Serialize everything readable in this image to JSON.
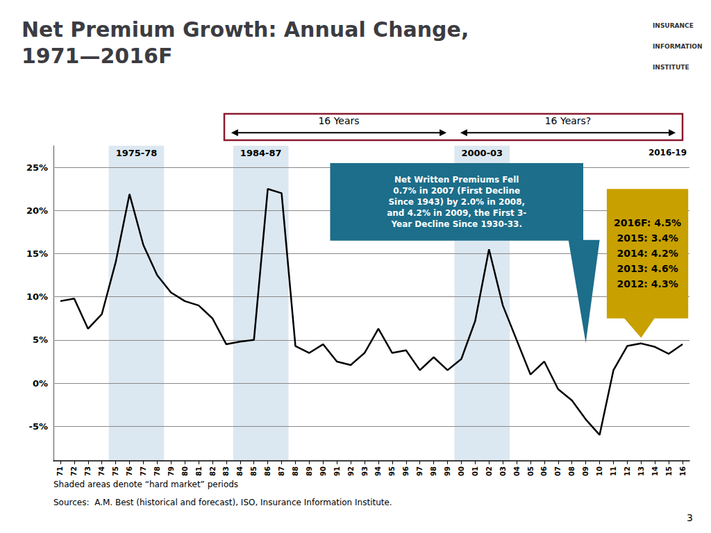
{
  "chart_data": {
    "type": "line",
    "title": "Net Premium Growth: Annual Change,\n1971—2016F",
    "categories": [
      "71",
      "72",
      "73",
      "74",
      "75",
      "76",
      "77",
      "78",
      "79",
      "80",
      "81",
      "82",
      "83",
      "84",
      "85",
      "86",
      "87",
      "88",
      "89",
      "90",
      "91",
      "92",
      "93",
      "94",
      "95",
      "96",
      "97",
      "98",
      "99",
      "00",
      "01",
      "02",
      "03",
      "04",
      "05",
      "06",
      "07",
      "08",
      "09",
      "10",
      "11",
      "12",
      "13",
      "14",
      "15",
      "16"
    ],
    "values": [
      9.5,
      9.8,
      6.3,
      8.0,
      14.0,
      21.9,
      16.0,
      12.5,
      10.5,
      9.5,
      9.0,
      7.5,
      4.5,
      4.8,
      5.0,
      22.5,
      22.0,
      4.3,
      3.5,
      4.5,
      2.5,
      2.1,
      3.5,
      6.3,
      3.5,
      3.8,
      1.5,
      3.0,
      1.5,
      2.8,
      7.2,
      15.5,
      9.0,
      5.0,
      1.0,
      2.5,
      -0.7,
      -2.0,
      -4.2,
      -6.0,
      1.5,
      4.3,
      4.6,
      4.2,
      3.4,
      4.5
    ],
    "color": "#000000",
    "ylim": [
      -9,
      27.5
    ],
    "yticks": [
      {
        "value": -5,
        "label": "-5%"
      },
      {
        "value": 0,
        "label": "0%"
      },
      {
        "value": 5,
        "label": "5%"
      },
      {
        "value": 10,
        "label": "10%"
      },
      {
        "value": 15,
        "label": "15%"
      },
      {
        "value": 20,
        "label": "20%"
      },
      {
        "value": 25,
        "label": "25%"
      }
    ],
    "grid": true,
    "shaded": [
      {
        "from": "75",
        "to": "78",
        "color": "#c5d8e8"
      },
      {
        "from": "84",
        "to": "87",
        "color": "#c5d8e8"
      },
      {
        "from": "00",
        "to": "03",
        "color": "#c5d8e8"
      }
    ],
    "period_labels": [
      "1975-78",
      "1984-87",
      "2000-03",
      "2016-19"
    ],
    "annotations": [
      {
        "text": "Net Written Premiums Fell\n0.7% in 2007 (First Decline\nSince 1943) by 2.0% in 2008,\nand 4.2% in 2009, the First 3-\nYear Decline Since 1930-33.",
        "color": "#1c6e8a",
        "points_to": "09"
      },
      {
        "text": "2016F: 4.5%\n2015: 3.4%\n2014: 4.2%\n2013: 4.6%\n2012: 4.3%",
        "color": "#c8a000",
        "points_to": "13"
      }
    ],
    "brackets": {
      "labels": [
        "16 Years",
        "16 Years?"
      ],
      "color": "#8b1a2e"
    },
    "header_texts": [
      "INSURANCE",
      "INFORMATION",
      "INSTITUTE"
    ],
    "footnotes": [
      "Shaded areas denote “hard market” periods",
      "Sources:  A.M. Best (historical and forecast), ISO, Insurance Information Institute."
    ],
    "page_number": "3"
  }
}
